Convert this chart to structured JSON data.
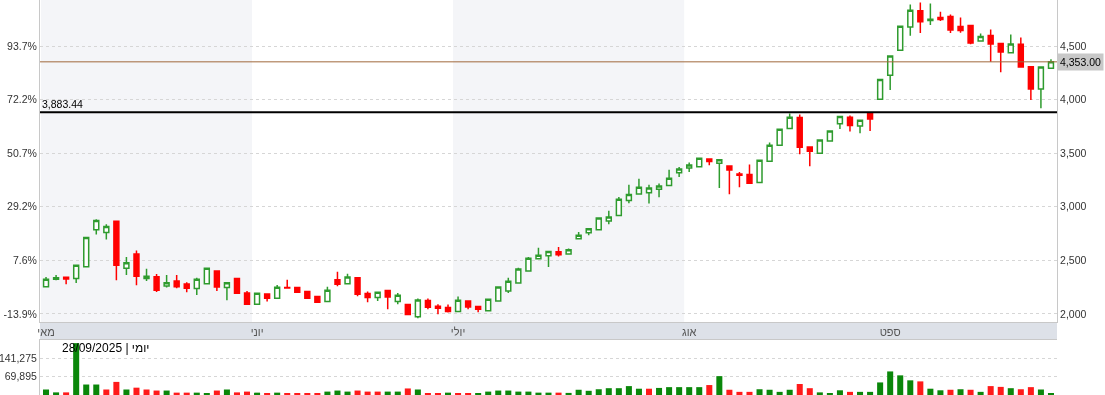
{
  "chart_data": [
    {
      "type": "candlestick",
      "categories": [
        "מאי",
        null,
        null,
        null,
        null,
        null,
        null,
        null,
        null,
        null,
        null,
        null,
        null,
        null,
        null,
        null,
        null,
        null,
        null,
        null,
        null,
        "יוני",
        null,
        null,
        null,
        null,
        null,
        null,
        null,
        null,
        null,
        null,
        null,
        null,
        null,
        null,
        null,
        null,
        null,
        null,
        null,
        "יולי",
        null,
        null,
        null,
        null,
        null,
        null,
        null,
        null,
        null,
        null,
        null,
        null,
        null,
        null,
        null,
        null,
        null,
        null,
        null,
        null,
        null,
        null,
        "אוג",
        null,
        null,
        null,
        null,
        null,
        null,
        null,
        null,
        null,
        null,
        null,
        null,
        null,
        null,
        null,
        null,
        null,
        null,
        null,
        "ספט",
        null,
        null,
        null,
        null,
        null,
        null,
        null,
        null,
        null,
        null,
        null,
        null,
        null,
        null,
        null,
        null
      ],
      "ohlc": [
        [
          2255,
          2345,
          2255,
          2323
        ],
        [
          2323,
          2364,
          2314,
          2339
        ],
        [
          2342,
          2345,
          2277,
          2327
        ],
        [
          2330,
          2458,
          2289,
          2454
        ],
        [
          2441,
          2714,
          2441,
          2714
        ],
        [
          2785,
          2885,
          2742,
          2872
        ],
        [
          2761,
          2838,
          2696,
          2816
        ],
        [
          2866,
          2866,
          2314,
          2454
        ],
        [
          2426,
          2531,
          2364,
          2479
        ],
        [
          2559,
          2593,
          2268,
          2351
        ],
        [
          2330,
          2423,
          2308,
          2351
        ],
        [
          2348,
          2373,
          2206,
          2221
        ],
        [
          2262,
          2364,
          2246,
          2292
        ],
        [
          2308,
          2364,
          2240,
          2255
        ],
        [
          2280,
          2296,
          2203,
          2240
        ],
        [
          2237,
          2339,
          2178,
          2323
        ],
        [
          2283,
          2426,
          2283,
          2426
        ],
        [
          2401,
          2401,
          2215,
          2252
        ],
        [
          2246,
          2296,
          2128,
          2292
        ],
        [
          2330,
          2330,
          2193,
          2193
        ],
        [
          2196,
          2215,
          2091,
          2091
        ],
        [
          2091,
          2193,
          2091,
          2193
        ],
        [
          2187,
          2187,
          2116,
          2147
        ],
        [
          2147,
          2271,
          2147,
          2249
        ],
        [
          2246,
          2320,
          2243,
          2243
        ],
        [
          2246,
          2252,
          2200,
          2203
        ],
        [
          2209,
          2209,
          2144,
          2147
        ],
        [
          2162,
          2162,
          2110,
          2110
        ],
        [
          2116,
          2255,
          2116,
          2221
        ],
        [
          2320,
          2395,
          2258,
          2277
        ],
        [
          2283,
          2376,
          2283,
          2345
        ],
        [
          2339,
          2339,
          2165,
          2184
        ],
        [
          2190,
          2209,
          2110,
          2153
        ],
        [
          2153,
          2203,
          2122,
          2203
        ],
        [
          2218,
          2218,
          2045,
          2159
        ],
        [
          2116,
          2196,
          2091,
          2175
        ],
        [
          2088,
          2088,
          1992,
          1995
        ],
        [
          1973,
          2144,
          1961,
          2131
        ],
        [
          2125,
          2144,
          2045,
          2063
        ],
        [
          2072,
          2091,
          1998,
          2054
        ],
        [
          2060,
          2088,
          2014,
          2023
        ],
        [
          2023,
          2162,
          2023,
          2129
        ],
        [
          2122,
          2122,
          2045,
          2066
        ],
        [
          2069,
          2069,
          2017,
          2045
        ],
        [
          2029,
          2137,
          2026,
          2137
        ],
        [
          2122,
          2252,
          2122,
          2252
        ],
        [
          2215,
          2339,
          2196,
          2305
        ],
        [
          2289,
          2432,
          2289,
          2420
        ],
        [
          2401,
          2531,
          2401,
          2519
        ],
        [
          2516,
          2618,
          2516,
          2547
        ],
        [
          2544,
          2590,
          2438,
          2584
        ],
        [
          2581,
          2624,
          2537,
          2553
        ],
        [
          2560,
          2610,
          2555,
          2600
        ],
        [
          2703,
          2765,
          2700,
          2734
        ],
        [
          2759,
          2800,
          2734,
          2796
        ],
        [
          2787,
          2899,
          2784,
          2896
        ],
        [
          2868,
          2964,
          2837,
          2905
        ],
        [
          2918,
          3092,
          2918,
          3070
        ],
        [
          3058,
          3207,
          3033,
          3114
        ],
        [
          3120,
          3263,
          3117,
          3182
        ],
        [
          3132,
          3207,
          3030,
          3176
        ],
        [
          3164,
          3217,
          3089,
          3195
        ],
        [
          3198,
          3347,
          3195,
          3266
        ],
        [
          3319,
          3372,
          3279,
          3354
        ],
        [
          3363,
          3413,
          3326,
          3391
        ],
        [
          3375,
          3456,
          3372,
          3453
        ],
        [
          3447,
          3450,
          3388,
          3422
        ],
        [
          3407,
          3441,
          3176,
          3438
        ],
        [
          3382,
          3382,
          3117,
          3344
        ],
        [
          3307,
          3326,
          3182,
          3294
        ],
        [
          3301,
          3394,
          3220,
          3220
        ],
        [
          3226,
          3438,
          3223,
          3435
        ],
        [
          3425,
          3600,
          3425,
          3575
        ],
        [
          3575,
          3727,
          3575,
          3724
        ],
        [
          3731,
          3871,
          3731,
          3836
        ],
        [
          3833,
          3861,
          3491,
          3556
        ],
        [
          3559,
          3562,
          3379,
          3519
        ],
        [
          3500,
          3624,
          3495,
          3624
        ],
        [
          3615,
          3711,
          3612,
          3708
        ],
        [
          3776,
          3845,
          3727,
          3842
        ],
        [
          3835,
          3851,
          3702,
          3758
        ],
        [
          3755,
          3811,
          3686,
          3807
        ],
        [
          3873,
          3873,
          3708,
          3820
        ],
        [
          4003,
          4192,
          4000,
          4189
        ],
        [
          4227,
          4410,
          4090,
          4407
        ],
        [
          4460,
          4690,
          4457,
          4686
        ],
        [
          4677,
          4888,
          4596,
          4835
        ],
        [
          4829,
          4907,
          4621,
          4727
        ],
        [
          4739,
          4898,
          4696,
          4751
        ],
        [
          4767,
          4820,
          4733,
          4748
        ],
        [
          4776,
          4795,
          4621,
          4649
        ],
        [
          4683,
          4767,
          4624,
          4646
        ],
        [
          4693,
          4696,
          4516,
          4528
        ],
        [
          4547,
          4618,
          4544,
          4590
        ],
        [
          4599,
          4655,
          4354,
          4519
        ],
        [
          4525,
          4528,
          4255,
          4444
        ],
        [
          4438,
          4609,
          4435,
          4519
        ],
        [
          4516,
          4581,
          4304,
          4304
        ],
        [
          4307,
          4310,
          3997,
          4099
        ],
        [
          4099,
          4307,
          3919,
          4304
        ],
        [
          4292,
          4376,
          4289,
          4353
        ]
      ],
      "colors": [
        "#2e9b2e",
        "#2e9b2e",
        "#ff0000",
        "#2e9b2e",
        "#2e9b2e",
        "#2e9b2e",
        "#2e9b2e",
        "#ff0000",
        "#2e9b2e",
        "#ff0000",
        "#2e9b2e",
        "#ff0000",
        "#2e9b2e",
        "#ff0000",
        "#ff0000",
        "#2e9b2e",
        "#2e9b2e",
        "#ff0000",
        "#2e9b2e",
        "#ff0000",
        "#ff0000",
        "#2e9b2e",
        "#ff0000",
        "#2e9b2e",
        "#ff0000",
        "#ff0000",
        "#ff0000",
        "#ff0000",
        "#2e9b2e",
        "#ff0000",
        "#2e9b2e",
        "#ff0000",
        "#ff0000",
        "#2e9b2e",
        "#ff0000",
        "#2e9b2e",
        "#ff0000",
        "#2e9b2e",
        "#ff0000",
        "#ff0000",
        "#ff0000",
        "#2e9b2e",
        "#ff0000",
        "#ff0000",
        "#2e9b2e",
        "#2e9b2e",
        "#2e9b2e",
        "#2e9b2e",
        "#2e9b2e",
        "#2e9b2e",
        "#2e9b2e",
        "#ff0000",
        "#2e9b2e",
        "#2e9b2e",
        "#2e9b2e",
        "#2e9b2e",
        "#2e9b2e",
        "#2e9b2e",
        "#2e9b2e",
        "#2e9b2e",
        "#2e9b2e",
        "#2e9b2e",
        "#2e9b2e",
        "#2e9b2e",
        "#2e9b2e",
        "#2e9b2e",
        "#ff0000",
        "#2e9b2e",
        "#ff0000",
        "#ff0000",
        "#ff0000",
        "#2e9b2e",
        "#2e9b2e",
        "#2e9b2e",
        "#2e9b2e",
        "#ff0000",
        "#ff0000",
        "#2e9b2e",
        "#2e9b2e",
        "#2e9b2e",
        "#ff0000",
        "#2e9b2e",
        "#ff0000",
        "#2e9b2e",
        "#2e9b2e",
        "#2e9b2e",
        "#2e9b2e",
        "#ff0000",
        "#2e9b2e",
        "#ff0000",
        "#ff0000",
        "#ff0000",
        "#ff0000",
        "#2e9b2e",
        "#ff0000",
        "#ff0000",
        "#2e9b2e",
        "#ff0000",
        "#ff0000",
        "#2e9b2e",
        "#2e9b2e"
      ],
      "ylim": [
        1925,
        4930
      ],
      "yticks": [
        {
          "value": 2000,
          "label": "2,000"
        },
        {
          "value": 2500,
          "label": "2,500"
        },
        {
          "value": 3000,
          "label": "3,000"
        },
        {
          "value": 3500,
          "label": "3,500"
        },
        {
          "value": 4000,
          "label": "4,000"
        },
        {
          "value": 4500,
          "label": "4,500"
        }
      ],
      "y2lim": [
        -17.1,
        112.2
      ],
      "y2ticks": [
        {
          "value": -13.9,
          "label": "-13.9%"
        },
        {
          "value": 7.6,
          "label": "7.6%"
        },
        {
          "value": 29.2,
          "label": "29.2%"
        },
        {
          "value": 50.7,
          "label": "50.7%"
        },
        {
          "value": 72.2,
          "label": "72.2%"
        },
        {
          "value": 93.7,
          "label": "93.7%"
        }
      ],
      "ref_lines": [
        {
          "axis": "y",
          "value": 3883.44,
          "label": "3,883.44",
          "color": "#000000"
        },
        {
          "axis": "y",
          "value": 4353,
          "label": "4,353.00",
          "color": "#a0693c"
        }
      ],
      "bands": [
        {
          "axis": "x",
          "from": "מאי",
          "to": "יוני",
          "color": "#f4f5f8"
        },
        {
          "axis": "x",
          "from": "יולי",
          "to": "אוג",
          "color": "#f4f5f8"
        }
      ],
      "grid": "y"
    },
    {
      "type": "bar",
      "categories": [
        null,
        null,
        null,
        null,
        null,
        null,
        null,
        null,
        null,
        null,
        null,
        null,
        null,
        null,
        null,
        null,
        null,
        null,
        null,
        null,
        null,
        null,
        null,
        null,
        null,
        null,
        null,
        null,
        null,
        null,
        null,
        null,
        null,
        null,
        null,
        null,
        null,
        null,
        null,
        null,
        null,
        null,
        null,
        null,
        null,
        null,
        null,
        null,
        null,
        null,
        null,
        null,
        null,
        null,
        null,
        null,
        null,
        null,
        null,
        null,
        null,
        null,
        null,
        null,
        null,
        null,
        null,
        null,
        null,
        null,
        null,
        null,
        null,
        null,
        null,
        null,
        null,
        null,
        null,
        null,
        null,
        null,
        null,
        null,
        null,
        null,
        null,
        null,
        null,
        null,
        null,
        null,
        null,
        null,
        null,
        null,
        null,
        null,
        null,
        null,
        null
      ],
      "values": [
        21000,
        10000,
        10000,
        198000,
        40000,
        40000,
        21000,
        50000,
        21000,
        28000,
        21000,
        17000,
        17000,
        9000,
        9000,
        9000,
        6000,
        17000,
        21000,
        10000,
        13000,
        9000,
        6000,
        9000,
        6000,
        6000,
        6000,
        6000,
        13000,
        17000,
        13000,
        17000,
        13000,
        13000,
        13000,
        13000,
        25000,
        21000,
        6000,
        6000,
        9000,
        6000,
        6000,
        6000,
        13000,
        17000,
        17000,
        13000,
        13000,
        9000,
        9000,
        9000,
        8000,
        20000,
        16000,
        22000,
        26000,
        26000,
        34000,
        24000,
        24000,
        27000,
        30000,
        30000,
        30000,
        30000,
        38000,
        72000,
        20000,
        12000,
        12000,
        22000,
        20000,
        12000,
        20000,
        42000,
        26000,
        10000,
        7000,
        18000,
        12000,
        12000,
        12000,
        48000,
        90000,
        75000,
        56000,
        52000,
        24000,
        18000,
        20000,
        22000,
        20000,
        12000,
        34000,
        31000,
        26000,
        22000,
        30000,
        21000,
        4000
      ],
      "colors": [
        "#0a870a",
        "#0a870a",
        "#ff1a1a",
        "#0a870a",
        "#0a870a",
        "#0a870a",
        "#ff1a1a",
        "#ff1a1a",
        "#0a870a",
        "#ff1a1a",
        "#ff1a1a",
        "#ff1a1a",
        "#0a870a",
        "#ff1a1a",
        "#ff1a1a",
        "#0a870a",
        "#0a870a",
        "#ff1a1a",
        "#0a870a",
        "#ff1a1a",
        "#ff1a1a",
        "#0a870a",
        "#ff1a1a",
        "#0a870a",
        "#ff1a1a",
        "#ff1a1a",
        "#ff1a1a",
        "#ff1a1a",
        "#0a870a",
        "#0a870a",
        "#0a870a",
        "#ff1a1a",
        "#ff1a1a",
        "#ff1a1a",
        "#0a870a",
        "#0a870a",
        "#ff1a1a",
        "#0a870a",
        "#ff1a1a",
        "#ff1a1a",
        "#0a870a",
        "#ff1a1a",
        "#ff1a1a",
        "#0a870a",
        "#0a870a",
        "#0a870a",
        "#0a870a",
        "#0a870a",
        "#0a870a",
        "#0a870a",
        "#0a870a",
        "#ff1a1a",
        "#0a870a",
        "#0a870a",
        "#0a870a",
        "#0a870a",
        "#0a870a",
        "#0a870a",
        "#0a870a",
        "#0a870a",
        "#ff1a1a",
        "#0a870a",
        "#0a870a",
        "#0a870a",
        "#0a870a",
        "#0a870a",
        "#ff1a1a",
        "#0a870a",
        "#ff1a1a",
        "#ff1a1a",
        "#ff1a1a",
        "#0a870a",
        "#0a870a",
        "#0a870a",
        "#0a870a",
        "#ff1a1a",
        "#ff1a1a",
        "#0a870a",
        "#0a870a",
        "#0a870a",
        "#ff1a1a",
        "#0a870a",
        "#0a870a",
        "#0a870a",
        "#0a870a",
        "#0a870a",
        "#0a870a",
        "#ff1a1a",
        "#0a870a",
        "#0a870a",
        "#ff1a1a",
        "#0a870a",
        "#ff1a1a",
        "#0a870a",
        "#ff1a1a",
        "#ff1a1a",
        "#0a870a",
        "#ff1a1a",
        "#ff1a1a",
        "#0a870a",
        "#0a870a"
      ],
      "ylim": [
        0,
        210000
      ],
      "yticks": [
        {
          "value": 69895,
          "label": "69,895"
        },
        {
          "value": 141275,
          "label": "141,275"
        }
      ],
      "grid": "y",
      "tick_labels": "y",
      "annotations": [
        "יומי | 28/09/2025"
      ]
    }
  ]
}
